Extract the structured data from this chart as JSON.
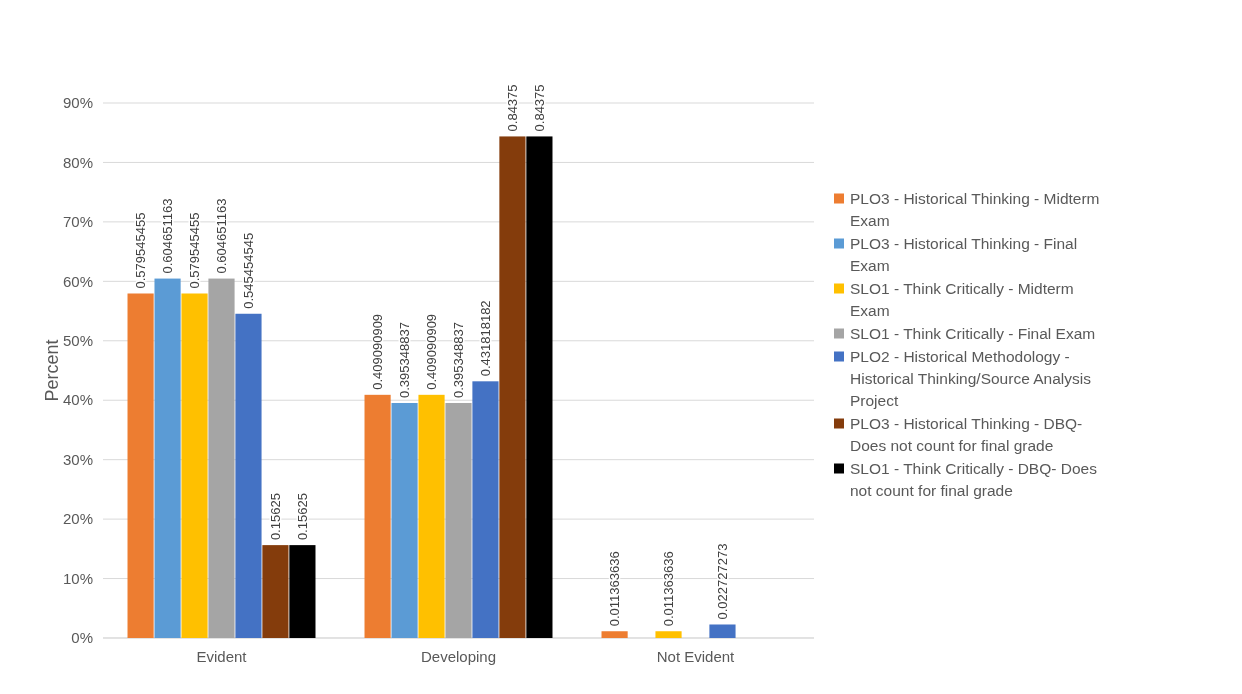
{
  "chart_data": {
    "type": "bar",
    "ylabel": "Percent",
    "categories": [
      "Evident",
      "Developing",
      "Not Evident"
    ],
    "series": [
      {
        "name": "PLO3 - Historical Thinking - Midterm Exam",
        "color": "#ed7d31",
        "values": [
          0.579545455,
          0.409090909,
          0.011363636
        ],
        "value_labels": [
          "0.579545455",
          "0.409090909",
          "0.011363636"
        ]
      },
      {
        "name": "PLO3 - Historical Thinking - Final Exam",
        "color": "#5b9bd5",
        "values": [
          0.604651163,
          0.395348837,
          null
        ],
        "value_labels": [
          "0.604651163",
          "0.395348837",
          null
        ]
      },
      {
        "name": "SLO1 - Think Critically - Midterm Exam",
        "color": "#ffc000",
        "values": [
          0.579545455,
          0.409090909,
          0.011363636
        ],
        "value_labels": [
          "0.579545455",
          "0.409090909",
          "0.011363636"
        ]
      },
      {
        "name": "SLO1 - Think Critically - Final Exam",
        "color": "#a5a5a5",
        "values": [
          0.604651163,
          0.395348837,
          null
        ],
        "value_labels": [
          "0.604651163",
          "0.395348837",
          null
        ]
      },
      {
        "name": "PLO2 - Historical Methodology - Historical Thinking/Source Analysis Project",
        "color": "#4472c4",
        "values": [
          0.545454545,
          0.431818182,
          0.022727273
        ],
        "value_labels": [
          "0.545454545",
          "0.431818182",
          "0.022727273"
        ]
      },
      {
        "name": "PLO3 - Historical Thinking - DBQ- Does not count for final grade",
        "color": "#843c0c",
        "values": [
          0.15625,
          0.84375,
          null
        ],
        "value_labels": [
          "0.15625",
          "0.84375",
          null
        ]
      },
      {
        "name": "SLO1 - Think Critically - DBQ- Does not count for final grade",
        "color": "#000000",
        "values": [
          0.15625,
          0.84375,
          null
        ],
        "value_labels": [
          "0.15625",
          "0.84375",
          null
        ]
      }
    ],
    "ylim": [
      0,
      0.9
    ],
    "yticks": [
      {
        "value": 0,
        "label": "0%"
      },
      {
        "value": 0.1,
        "label": "10%"
      },
      {
        "value": 0.2,
        "label": "20%"
      },
      {
        "value": 0.3,
        "label": "30%"
      },
      {
        "value": 0.4,
        "label": "40%"
      },
      {
        "value": 0.5,
        "label": "50%"
      },
      {
        "value": 0.6,
        "label": "60%"
      },
      {
        "value": 0.7,
        "label": "70%"
      },
      {
        "value": 0.8,
        "label": "80%"
      },
      {
        "value": 0.9,
        "label": "90%"
      }
    ],
    "grid": "y",
    "legend": "right"
  }
}
